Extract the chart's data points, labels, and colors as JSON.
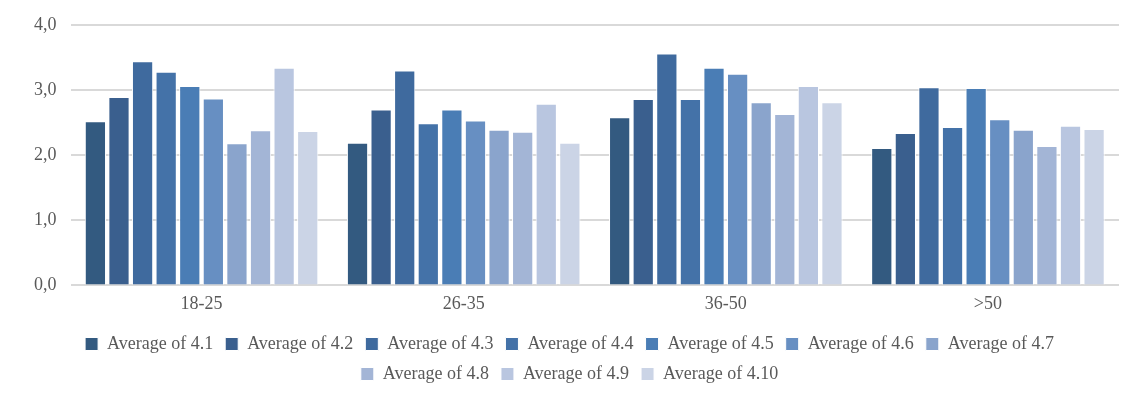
{
  "chart_data": {
    "type": "bar",
    "categories": [
      "18-25",
      "26-35",
      "36-50",
      ">50"
    ],
    "series": [
      {
        "name": "Average of 4.1",
        "color": "#335a80",
        "values": [
          2.52,
          2.19,
          2.58,
          2.11
        ]
      },
      {
        "name": "Average of 4.2",
        "color": "#3a5f8e",
        "values": [
          2.89,
          2.7,
          2.86,
          2.34
        ]
      },
      {
        "name": "Average of 4.3",
        "color": "#3f6a9e",
        "values": [
          3.44,
          3.3,
          3.56,
          3.04
        ]
      },
      {
        "name": "Average of 4.4",
        "color": "#4472a8",
        "values": [
          3.28,
          2.49,
          2.86,
          2.43
        ]
      },
      {
        "name": "Average of 4.5",
        "color": "#4a7db5",
        "values": [
          3.06,
          2.7,
          3.34,
          3.03
        ]
      },
      {
        "name": "Average of 4.6",
        "color": "#678fc2",
        "values": [
          2.87,
          2.53,
          3.25,
          2.55
        ]
      },
      {
        "name": "Average of 4.7",
        "color": "#8aa4cc",
        "values": [
          2.18,
          2.39,
          2.81,
          2.39
        ]
      },
      {
        "name": "Average of 4.8",
        "color": "#a3b5d6",
        "values": [
          2.38,
          2.36,
          2.63,
          2.14
        ]
      },
      {
        "name": "Average of 4.9",
        "color": "#b9c6e0",
        "values": [
          3.34,
          2.79,
          3.06,
          2.45
        ]
      },
      {
        "name": "Average of 4.10",
        "color": "#cbd4e6",
        "values": [
          2.37,
          2.19,
          2.81,
          2.4
        ]
      }
    ],
    "ylim": [
      0,
      4
    ],
    "yticks": [
      {
        "value": 0,
        "label": "0,0"
      },
      {
        "value": 1,
        "label": "1,0"
      },
      {
        "value": 2,
        "label": "2,0"
      },
      {
        "value": 3,
        "label": "3,0"
      },
      {
        "value": 4,
        "label": "4,0"
      }
    ],
    "grid": "y",
    "legend": "bottom"
  }
}
